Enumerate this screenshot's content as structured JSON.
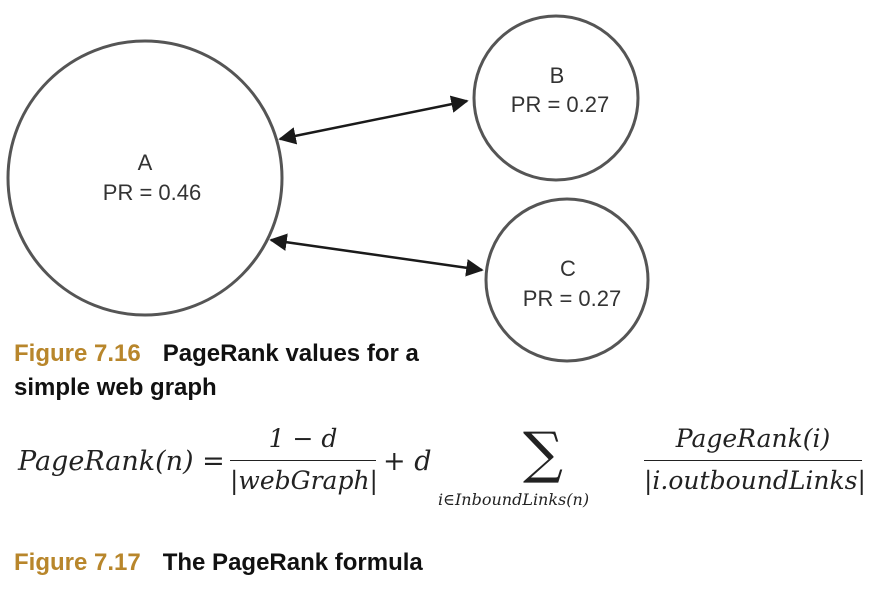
{
  "graph": {
    "nodes": [
      {
        "id": "a",
        "name": "A",
        "pr": "PR = 0.46"
      },
      {
        "id": "b",
        "name": "B",
        "pr": "PR = 0.27"
      },
      {
        "id": "c",
        "name": "C",
        "pr": "PR = 0.27"
      }
    ],
    "edges": [
      {
        "from": "A",
        "to": "B",
        "bidirectional": true
      },
      {
        "from": "A",
        "to": "C",
        "bidirectional": true
      }
    ],
    "colors": {
      "node_stroke": "#555555",
      "edge": "#1a1a1a",
      "figure_number": "#b8862b"
    }
  },
  "figure_716": {
    "number": "Figure 7.16",
    "text": "PageRank values for a simple web graph"
  },
  "formula": {
    "lhs": "PageRank(n) =",
    "frac1_num": "1 − d",
    "frac1_den": "|webGraph|",
    "plus_d": "+ d",
    "sigma": "∑",
    "sum_subscript": "i∈InboundLinks(n)",
    "frac2_num": "PageRank(i)",
    "frac2_den": "|i.outboundLinks|"
  },
  "figure_717": {
    "number": "Figure 7.17",
    "text": "The PageRank formula"
  }
}
